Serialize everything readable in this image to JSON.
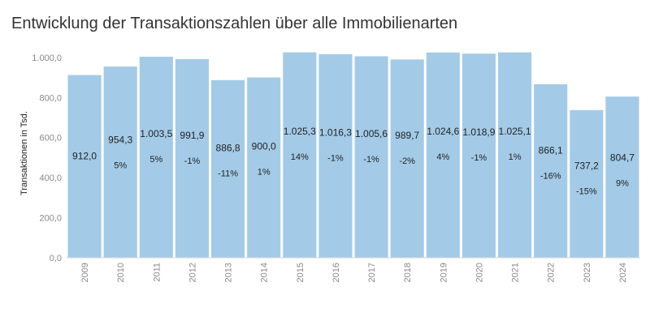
{
  "chart_data": {
    "type": "bar",
    "title": "Entwicklung der Transaktionszahlen über alle Immobilienarten",
    "ylabel": "Transaktionen in Tsd.",
    "xlabel": "",
    "ylim": [
      0,
      1060
    ],
    "yticks": [
      "0,0",
      "200,0",
      "400,0",
      "600,0",
      "800,0",
      "1.000,0"
    ],
    "grid": false,
    "categories": [
      "2009",
      "2010",
      "2011",
      "2012",
      "2013",
      "2014",
      "2015",
      "2016",
      "2017",
      "2018",
      "2019",
      "2020",
      "2021",
      "2022",
      "2023",
      "2024"
    ],
    "values": [
      912.0,
      954.3,
      1003.5,
      991.9,
      886.8,
      900.0,
      1025.3,
      1016.3,
      1005.6,
      989.7,
      1024.6,
      1018.9,
      1025.1,
      866.1,
      737.2,
      804.7
    ],
    "value_labels": [
      "912,0",
      "954,3",
      "1.003,5",
      "991,9",
      "886,8",
      "900,0",
      "1.025,3",
      "1.016,3",
      "1.005,6",
      "989,7",
      "1.024,6",
      "1.018,9",
      "1.025,1",
      "866,1",
      "737,2",
      "804,7"
    ],
    "change_labels": [
      "",
      "5%",
      "5%",
      "-1%",
      "-11%",
      "1%",
      "14%",
      "-1%",
      "-1%",
      "-2%",
      "4%",
      "-1%",
      "1%",
      "-16%",
      "-15%",
      "9%"
    ],
    "bar_color": "#a3cbe8"
  }
}
